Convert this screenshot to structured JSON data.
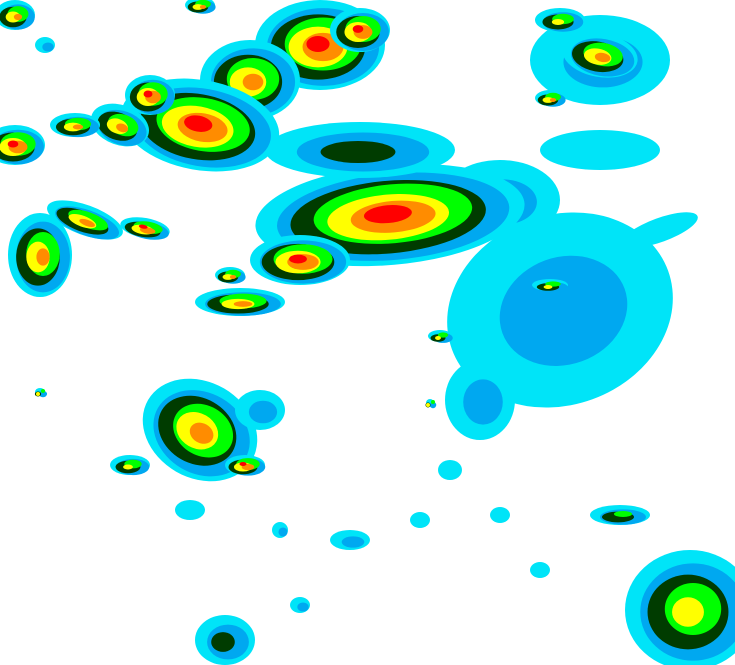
{
  "map": {
    "type": "radar-reflectivity",
    "background": "#ffffff",
    "intensity_colors": [
      "#00e4f8",
      "#00a8f0",
      "#003c00",
      "#00ff00",
      "#ffff00",
      "#ff8c00",
      "#ff0000"
    ]
  }
}
